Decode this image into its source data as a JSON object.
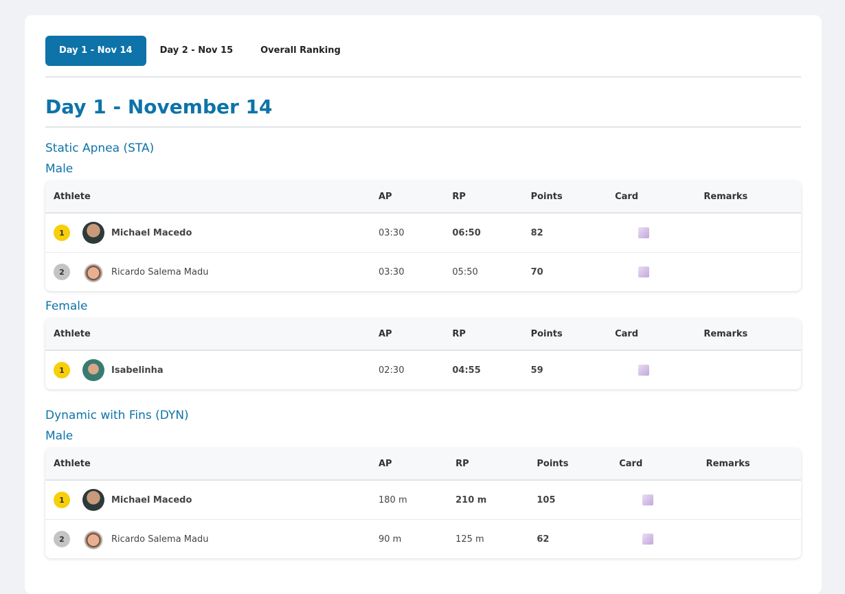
{
  "tabs": {
    "items": [
      "Day 1 - Nov 14",
      "Day 2 - Nov 15",
      "Overall Ranking"
    ],
    "active": 0
  },
  "heading": "Day 1 - November 14",
  "disciplines": [
    {
      "title": "Static Apnea (STA)",
      "groups": [
        {
          "title": "Male",
          "columns": [
            "Athlete",
            "AP",
            "RP",
            "Points",
            "Card",
            "Remarks"
          ],
          "rows": [
            {
              "rank": 1,
              "athlete": "Michael Macedo",
              "ap": "03:30",
              "rp": "06:50",
              "points": 82
            },
            {
              "rank": 2,
              "athlete": "Ricardo Salema Madu",
              "ap": "03:30",
              "rp": "05:50",
              "points": 70
            }
          ]
        },
        {
          "title": "Female",
          "columns": [
            "Athlete",
            "AP",
            "RP",
            "Points",
            "Card",
            "Remarks"
          ],
          "rows": [
            {
              "rank": 1,
              "athlete": "Isabelinha",
              "ap": "02:30",
              "rp": "04:55",
              "points": 59
            }
          ]
        }
      ]
    },
    {
      "title": "Dynamic with Fins (DYN)",
      "groups": [
        {
          "title": "Male",
          "columns": [
            "Athlete",
            "AP",
            "RP",
            "Points",
            "Card",
            "Remarks"
          ],
          "rows": [
            {
              "rank": 1,
              "athlete": "Michael Macedo",
              "ap": "180 m",
              "rp": "210 m",
              "points": 105
            },
            {
              "rank": 2,
              "athlete": "Ricardo Salema Madu",
              "ap": "90 m",
              "rp": "125 m",
              "points": 62
            }
          ]
        }
      ]
    }
  ]
}
